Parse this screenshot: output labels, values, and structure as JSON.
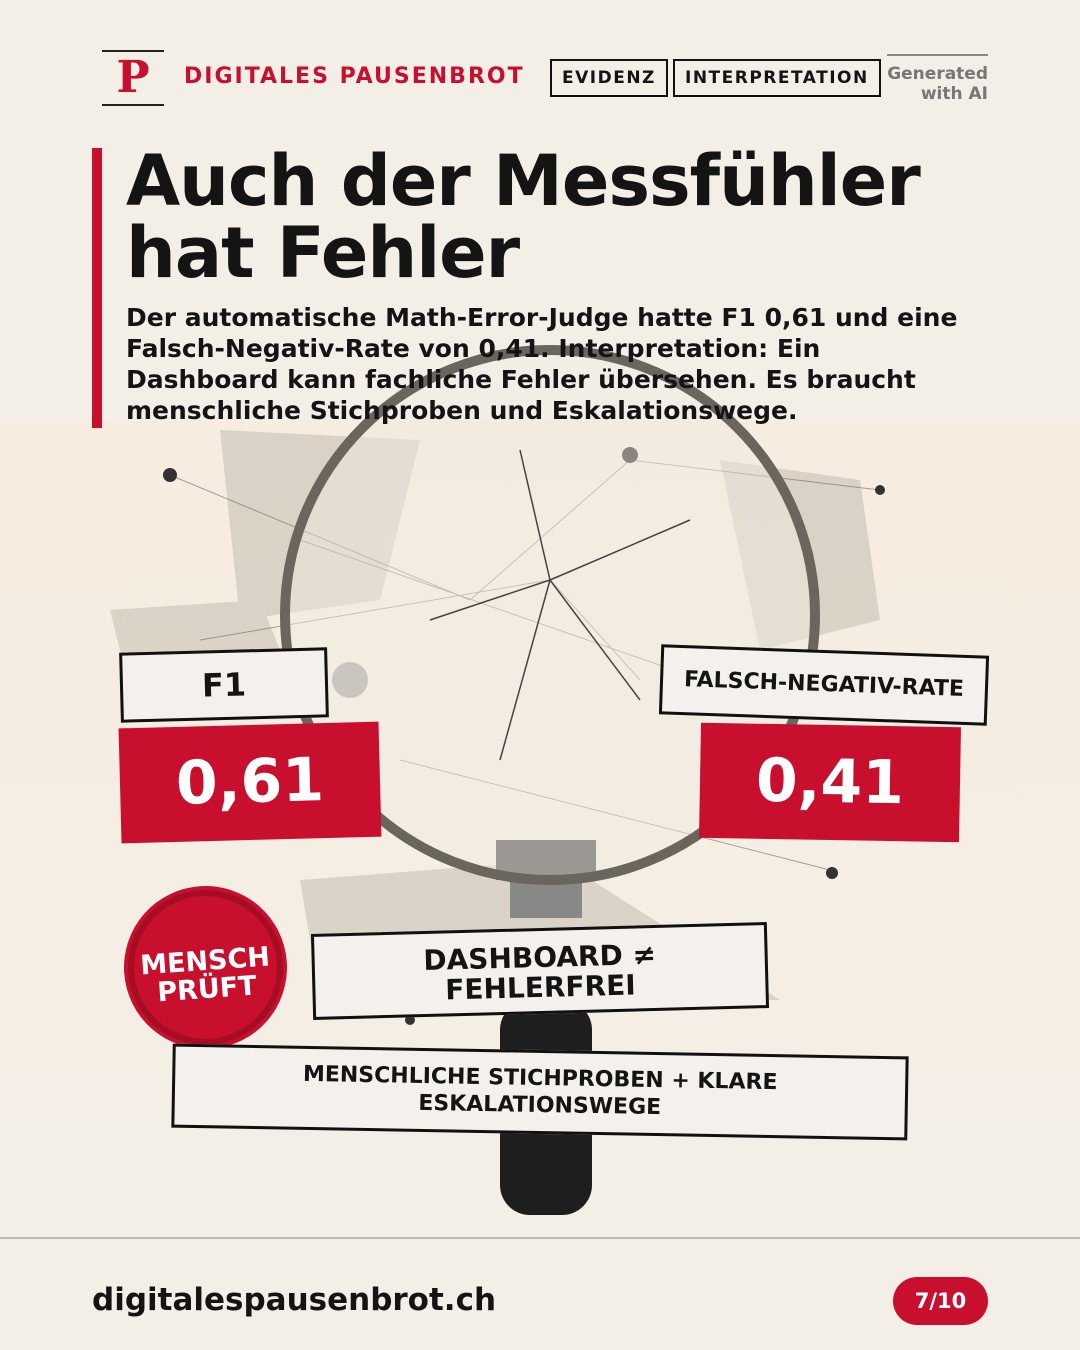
{
  "header": {
    "logo": "P",
    "brand": "DIGITALES PAUSENBROT",
    "tags": [
      "EVIDENZ",
      "INTERPRETATION"
    ],
    "generated": [
      "Generated",
      "with AI"
    ]
  },
  "title": [
    "Auch der Messfühler",
    "hat Fehler"
  ],
  "body": "Der automatische Math-Error-Judge hatte F1 0,61 und eine Falsch-Negativ-Rate von 0,41. Interpretation: Ein Dashboard kann fachliche Fehler übersehen. Es braucht menschliche Stichproben und Eskalationswege.",
  "stats": [
    {
      "label": "F1",
      "value": "0,61"
    },
    {
      "label": "FALSCH-NEGATIV-RATE",
      "value": "0,41"
    }
  ],
  "stamp": [
    "MENSCH",
    "PRÜFT"
  ],
  "callout": [
    "DASHBOARD ≠",
    "FEHLERFREI"
  ],
  "note": [
    "MENSCHLICHE STICHPROBEN + KLARE",
    "ESKALATIONSWEGE"
  ],
  "footer": {
    "url": "digitalespausenbrot.ch",
    "page": "7/10"
  }
}
